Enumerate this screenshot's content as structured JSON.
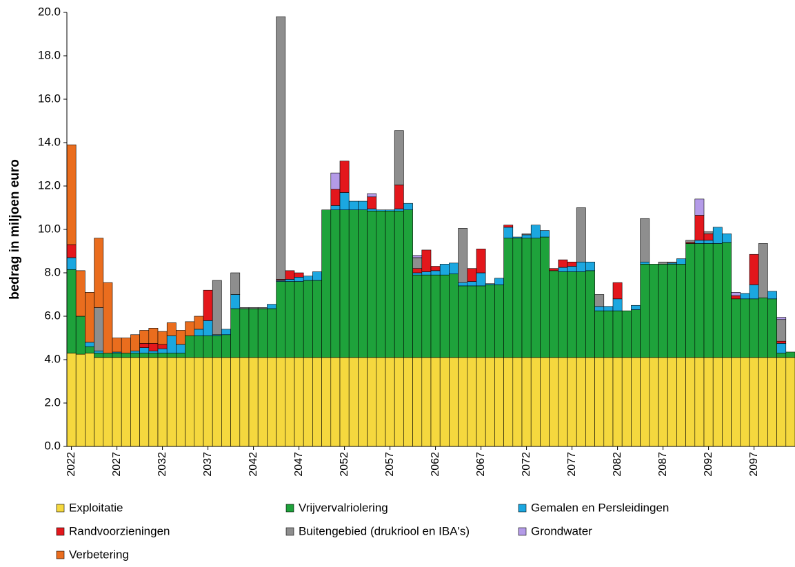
{
  "chart_data": {
    "type": "stacked_bar",
    "y_label": "bedrag in miljoen euro",
    "categories": [
      "2022",
      null,
      null,
      null,
      null,
      "2027",
      null,
      null,
      null,
      null,
      "2032",
      null,
      null,
      null,
      null,
      "2037",
      null,
      null,
      null,
      null,
      "2042",
      null,
      null,
      null,
      null,
      "2047",
      null,
      null,
      null,
      null,
      "2052",
      null,
      null,
      null,
      null,
      "2057",
      null,
      null,
      null,
      null,
      "2062",
      null,
      null,
      null,
      null,
      "2067",
      null,
      null,
      null,
      null,
      "2072",
      null,
      null,
      null,
      null,
      "2077",
      null,
      null,
      null,
      null,
      "2082",
      null,
      null,
      null,
      null,
      "2087",
      null,
      null,
      null,
      null,
      "2092",
      null,
      null,
      null,
      null,
      "2097",
      null,
      null,
      null,
      null
    ],
    "ylim": [
      0,
      20
    ],
    "yticks": [
      {
        "value": 0,
        "label": "0.0"
      },
      {
        "value": 2,
        "label": "2.0"
      },
      {
        "value": 4,
        "label": "4.0"
      },
      {
        "value": 6,
        "label": "6.0"
      },
      {
        "value": 8,
        "label": "8.0"
      },
      {
        "value": 10,
        "label": "10.0"
      },
      {
        "value": 12,
        "label": "12.0"
      },
      {
        "value": 14,
        "label": "14.0"
      },
      {
        "value": 16,
        "label": "16.0"
      },
      {
        "value": 18,
        "label": "18.0"
      },
      {
        "value": 20,
        "label": "20.0"
      }
    ],
    "series": [
      {
        "name": "Exploitatie",
        "color": "#f5d83e",
        "values": [
          4.3,
          4.25,
          4.3,
          4.1,
          4.1,
          4.1,
          4.1,
          4.1,
          4.1,
          4.1,
          4.1,
          4.1,
          4.1,
          4.1,
          4.1,
          4.1,
          4.1,
          4.1,
          4.1,
          4.1,
          4.1,
          4.1,
          4.1,
          4.1,
          4.1,
          4.1,
          4.1,
          4.1,
          4.1,
          4.1,
          4.1,
          4.1,
          4.1,
          4.1,
          4.1,
          4.1,
          4.1,
          4.1,
          4.1,
          4.1,
          4.1,
          4.1,
          4.1,
          4.1,
          4.1,
          4.1,
          4.1,
          4.1,
          4.1,
          4.1,
          4.1,
          4.1,
          4.1,
          4.1,
          4.1,
          4.1,
          4.1,
          4.1,
          4.1,
          4.1,
          4.1,
          4.1,
          4.1,
          4.1,
          4.1,
          4.1,
          4.1,
          4.1,
          4.1,
          4.1,
          4.1,
          4.1,
          4.1,
          4.1,
          4.1,
          4.1,
          4.1,
          4.1,
          4.1,
          4.1
        ]
      },
      {
        "name": "Vrijvervalriolering",
        "color": "#1ea23b",
        "values": [
          3.85,
          1.75,
          0.3,
          0.2,
          0.2,
          0.2,
          0.2,
          0.2,
          0.2,
          0.2,
          0.2,
          0.2,
          0.2,
          1.0,
          1.0,
          1.0,
          1.0,
          1.05,
          2.25,
          2.25,
          2.25,
          2.25,
          2.25,
          3.5,
          3.5,
          3.5,
          3.55,
          3.55,
          6.8,
          6.8,
          6.8,
          6.8,
          6.8,
          6.75,
          6.75,
          6.75,
          6.75,
          6.8,
          3.8,
          3.8,
          3.8,
          3.8,
          3.85,
          3.3,
          3.3,
          3.3,
          3.35,
          3.35,
          5.5,
          5.5,
          5.5,
          5.5,
          5.55,
          4.0,
          3.95,
          3.95,
          3.95,
          4.0,
          2.15,
          2.15,
          2.15,
          2.15,
          2.2,
          4.3,
          4.3,
          4.3,
          4.3,
          4.3,
          5.25,
          5.25,
          5.25,
          5.25,
          5.3,
          2.7,
          2.7,
          2.7,
          2.75,
          2.7,
          0.2,
          0.25
        ]
      },
      {
        "name": "Gemalen en Persleidingen",
        "color": "#1ba7e0",
        "values": [
          0.55,
          0,
          0.2,
          0.1,
          0,
          0.05,
          0,
          0.1,
          0.25,
          0.1,
          0.2,
          0.8,
          0.4,
          0,
          0.3,
          0.7,
          0.05,
          0.25,
          0.65,
          0,
          0,
          0,
          0.2,
          0.05,
          0.1,
          0.2,
          0.2,
          0.4,
          0,
          0.2,
          0.8,
          0.4,
          0.4,
          0.1,
          0.05,
          0.05,
          0.1,
          0.3,
          0.1,
          0.15,
          0.2,
          0.5,
          0.5,
          0.15,
          0.2,
          0.6,
          0.05,
          0.3,
          0.5,
          0.05,
          0.15,
          0.6,
          0.3,
          0,
          0.2,
          0.25,
          0.45,
          0.4,
          0.2,
          0.2,
          0.55,
          0,
          0.2,
          0.1,
          0,
          0,
          0.05,
          0.25,
          0,
          0.15,
          0.15,
          0.75,
          0.4,
          0,
          0.25,
          0.65,
          0,
          0.35,
          0.45,
          0
        ]
      },
      {
        "name": "Randvoorzieningen",
        "color": "#e3171c",
        "values": [
          0.6,
          0,
          0,
          0,
          0,
          0,
          0,
          0,
          0.2,
          0.35,
          0.2,
          0,
          0,
          0,
          0,
          1.4,
          0,
          0,
          0,
          0,
          0,
          0,
          0,
          0.05,
          0.4,
          0.2,
          0,
          0,
          0,
          0.75,
          1.45,
          0,
          0,
          0.55,
          0,
          0,
          1.1,
          0,
          0.2,
          1.0,
          0.2,
          0,
          0,
          0,
          0.6,
          1.1,
          0,
          0,
          0.1,
          0,
          0,
          0,
          0,
          0.1,
          0.35,
          0.2,
          0,
          0,
          0,
          0,
          0.75,
          0,
          0,
          0,
          0,
          0,
          0,
          0,
          0.05,
          1.15,
          0.3,
          0,
          0,
          0.15,
          0,
          1.4,
          0,
          0,
          0.1,
          0
        ]
      },
      {
        "name": "Buitengebied (drukriool en IBA's)",
        "color": "#8e8e8e",
        "values": [
          0,
          0,
          0,
          2.0,
          0,
          0,
          0,
          0,
          0,
          0,
          0,
          0,
          0,
          0,
          0,
          0,
          2.5,
          0,
          1.0,
          0.05,
          0.05,
          0.05,
          0,
          12.1,
          0,
          0,
          0,
          0,
          0,
          0,
          0,
          0,
          0,
          0,
          0,
          0,
          2.5,
          0,
          0.5,
          0,
          0,
          0,
          0,
          2.5,
          0,
          0,
          0,
          0,
          0,
          0,
          0.05,
          0,
          0,
          0,
          0,
          0,
          2.5,
          0,
          0.55,
          0,
          0,
          0,
          0,
          2.0,
          0,
          0.1,
          0.05,
          0,
          0.1,
          0,
          0.1,
          0,
          0,
          0,
          0,
          0,
          2.5,
          0,
          1.0,
          0
        ]
      },
      {
        "name": "Grondwater",
        "color": "#b49be8",
        "values": [
          0,
          0,
          0,
          0,
          0,
          0,
          0,
          0,
          0,
          0,
          0,
          0,
          0,
          0,
          0,
          0,
          0,
          0,
          0,
          0,
          0,
          0,
          0,
          0,
          0,
          0,
          0,
          0,
          0,
          0.75,
          0,
          0,
          0,
          0.15,
          0,
          0,
          0,
          0,
          0.1,
          0,
          0,
          0,
          0,
          0,
          0,
          0,
          0,
          0,
          0,
          0,
          0,
          0,
          0,
          0,
          0,
          0,
          0,
          0,
          0,
          0,
          0,
          0,
          0,
          0,
          0,
          0,
          0,
          0,
          0,
          0.75,
          0,
          0,
          0,
          0.15,
          0,
          0,
          0,
          0,
          0.1,
          0
        ]
      },
      {
        "name": "Verbetering",
        "color": "#ea6d1e",
        "values": [
          4.6,
          2.1,
          2.3,
          3.2,
          3.25,
          0.65,
          0.7,
          0.75,
          0.6,
          0.7,
          0.6,
          0.6,
          0.65,
          0.65,
          0.6,
          0,
          0,
          0,
          0,
          0,
          0,
          0,
          0,
          0,
          0,
          0,
          0,
          0,
          0,
          0,
          0,
          0,
          0,
          0,
          0,
          0,
          0,
          0,
          0,
          0,
          0,
          0,
          0,
          0,
          0,
          0,
          0,
          0,
          0,
          0,
          0,
          0,
          0,
          0,
          0,
          0,
          0,
          0,
          0,
          0,
          0,
          0,
          0,
          0,
          0,
          0,
          0,
          0,
          0,
          0,
          0,
          0,
          0,
          0,
          0,
          0,
          0,
          0,
          0,
          0
        ]
      }
    ]
  }
}
